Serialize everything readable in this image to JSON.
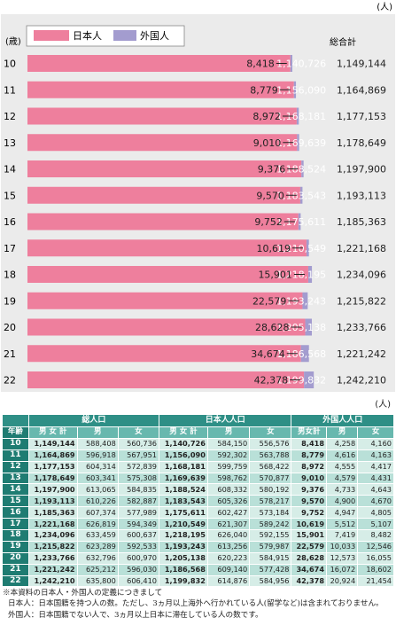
{
  "chart_data": {
    "type": "bar",
    "stacked": true,
    "orientation": "horizontal",
    "unit": "(人)",
    "axis_title": "(歳)",
    "total_header": "総合計",
    "xlim": [
      0,
      1260000
    ],
    "categories": [
      "10",
      "11",
      "12",
      "13",
      "14",
      "15",
      "16",
      "17",
      "18",
      "19",
      "20",
      "21",
      "22"
    ],
    "series": [
      {
        "name": "日本人",
        "color": "#ee7f9d",
        "values": [
          1140726,
          1156090,
          1168181,
          1169639,
          1188524,
          1183543,
          1175611,
          1210549,
          1218195,
          1193243,
          1205138,
          1186568,
          1199832
        ]
      },
      {
        "name": "外国人",
        "color": "#a39ccf",
        "values": [
          8418,
          8779,
          8972,
          9010,
          9376,
          9570,
          9752,
          10619,
          15901,
          22579,
          28628,
          34674,
          42378
        ]
      }
    ],
    "value_labels": {
      "japanese": [
        "1,140,726",
        "1,156,090",
        "1,168,181",
        "1,169,639",
        "1,188,524",
        "1,183,543",
        "1,175,611",
        "1,210,549",
        "1,218,195",
        "1,193,243",
        "1,205,138",
        "1,186,568",
        "1,199,832"
      ],
      "foreign": [
        "8,418",
        "8,779",
        "8,972",
        "9,010",
        "9,376",
        "9,570",
        "9,752",
        "10,619",
        "15,901",
        "22,579",
        "28,628",
        "34,674",
        "42,378"
      ]
    },
    "totals": [
      "1,149,144",
      "1,164,869",
      "1,177,153",
      "1,178,649",
      "1,197,900",
      "1,193,113",
      "1,185,363",
      "1,221,168",
      "1,234,096",
      "1,215,822",
      "1,233,766",
      "1,221,242",
      "1,242,210"
    ],
    "legend_position": "top-left"
  },
  "table": {
    "unit": "(人)",
    "groups": [
      "総人口",
      "日本人人口",
      "外国人人口"
    ],
    "age_header": "年齢",
    "sub_headers": [
      "男 女 計",
      "男",
      "女",
      "男 女 計",
      "男",
      "女",
      "男女計",
      "男",
      "女"
    ],
    "rows": [
      [
        "10",
        "1,149,144",
        "588,408",
        "560,736",
        "1,140,726",
        "584,150",
        "556,576",
        "8,418",
        "4,258",
        "4,160"
      ],
      [
        "11",
        "1,164,869",
        "596,918",
        "567,951",
        "1,156,090",
        "592,302",
        "563,788",
        "8,779",
        "4,616",
        "4,163"
      ],
      [
        "12",
        "1,177,153",
        "604,314",
        "572,839",
        "1,168,181",
        "599,759",
        "568,422",
        "8,972",
        "4,555",
        "4,417"
      ],
      [
        "13",
        "1,178,649",
        "603,341",
        "575,308",
        "1,169,639",
        "598,762",
        "570,877",
        "9,010",
        "4,579",
        "4,431"
      ],
      [
        "14",
        "1,197,900",
        "613,065",
        "584,835",
        "1,188,524",
        "608,332",
        "580,192",
        "9,376",
        "4,733",
        "4,643"
      ],
      [
        "15",
        "1,193,113",
        "610,226",
        "582,887",
        "1,183,543",
        "605,326",
        "578,217",
        "9,570",
        "4,900",
        "4,670"
      ],
      [
        "16",
        "1,185,363",
        "607,374",
        "577,989",
        "1,175,611",
        "602,427",
        "573,184",
        "9,752",
        "4,947",
        "4,805"
      ],
      [
        "17",
        "1,221,168",
        "626,819",
        "594,349",
        "1,210,549",
        "621,307",
        "589,242",
        "10,619",
        "5,512",
        "5,107"
      ],
      [
        "18",
        "1,234,096",
        "633,459",
        "600,637",
        "1,218,195",
        "626,040",
        "592,155",
        "15,901",
        "7,419",
        "8,482"
      ],
      [
        "19",
        "1,215,822",
        "623,289",
        "592,533",
        "1,193,243",
        "613,256",
        "579,987",
        "22,579",
        "10,033",
        "12,546"
      ],
      [
        "20",
        "1,233,766",
        "632,796",
        "600,970",
        "1,205,138",
        "620,223",
        "584,915",
        "28,628",
        "12,573",
        "16,055"
      ],
      [
        "21",
        "1,221,242",
        "625,212",
        "596,030",
        "1,186,568",
        "609,140",
        "577,428",
        "34,674",
        "16,072",
        "18,602"
      ],
      [
        "22",
        "1,242,210",
        "635,800",
        "606,410",
        "1,199,832",
        "614,876",
        "584,956",
        "42,378",
        "20,924",
        "21,454"
      ]
    ]
  },
  "notes": [
    "※本資料の日本人・外国人の定義につきまして",
    "日本人：日本国籍を持つ人の数。ただし、3ヵ月以上海外へ行かれている人(留学など)は含まれておりません。",
    "外国人：日本国籍でない人で、3ヵ月以上日本に滞在している人の数です。"
  ]
}
